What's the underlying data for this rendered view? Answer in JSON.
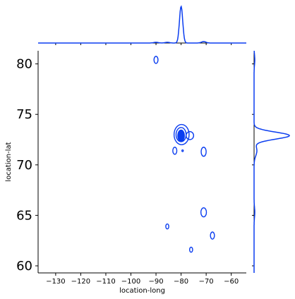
{
  "chart_data": {
    "type": "kde-jointplot",
    "xlabel": "location-long",
    "ylabel": "location-lat",
    "xlim": [
      -137,
      -54
    ],
    "ylim": [
      59.3,
      81.3
    ],
    "x_ticks": [
      -130,
      -120,
      -110,
      -100,
      -90,
      -80,
      -70,
      -60
    ],
    "y_ticks": [
      60,
      65,
      70,
      75,
      80
    ],
    "line_color": "#0a3df0",
    "contours": [
      {
        "cx": -90,
        "cy": 80.4,
        "rx": 0.8,
        "ry": 0.35,
        "level": 1,
        "filled": false
      },
      {
        "cx": -79.8,
        "cy": 73.0,
        "rx": 3.0,
        "ry": 1.0,
        "level": 1,
        "filled": false
      },
      {
        "cx": -80,
        "cy": 73.0,
        "rx": 2.0,
        "ry": 0.7,
        "level": 2,
        "filled": false
      },
      {
        "cx": -80,
        "cy": 72.9,
        "rx": 1.3,
        "ry": 0.55,
        "level": 3,
        "filled": true
      },
      {
        "cx": -76.5,
        "cy": 72.9,
        "rx": 1.5,
        "ry": 0.4,
        "level": 1,
        "filled": false
      },
      {
        "cx": -82.5,
        "cy": 71.4,
        "rx": 0.8,
        "ry": 0.35,
        "level": 1,
        "filled": false
      },
      {
        "cx": -79.4,
        "cy": 71.4,
        "rx": 0.15,
        "ry": 0.08,
        "level": 1,
        "filled": false
      },
      {
        "cx": -71.0,
        "cy": 71.3,
        "rx": 1.0,
        "ry": 0.45,
        "level": 1,
        "filled": false
      },
      {
        "cx": -71.0,
        "cy": 65.3,
        "rx": 1.1,
        "ry": 0.45,
        "level": 1,
        "filled": false
      },
      {
        "cx": -85.5,
        "cy": 63.9,
        "rx": 0.6,
        "ry": 0.25,
        "level": 1,
        "filled": false
      },
      {
        "cx": -67.5,
        "cy": 63.0,
        "rx": 0.8,
        "ry": 0.35,
        "level": 1,
        "filled": false
      },
      {
        "cx": -76.0,
        "cy": 61.6,
        "rx": 0.6,
        "ry": 0.25,
        "level": 1,
        "filled": false
      }
    ],
    "marginal_x": {
      "peaks": [
        {
          "x": -80,
          "height": 1.0,
          "sigma": 0.65
        },
        {
          "x": -71,
          "height": 0.04,
          "sigma": 0.9
        },
        {
          "x": -90,
          "height": 0.02,
          "sigma": 0.9
        },
        {
          "x": -85.5,
          "height": 0.02,
          "sigma": 0.9
        }
      ]
    },
    "marginal_y": {
      "peaks": [
        {
          "y": 72.9,
          "height": 1.0,
          "sigma": 0.35
        },
        {
          "y": 71.4,
          "height": 0.08,
          "sigma": 0.5
        },
        {
          "y": 65.3,
          "height": 0.02,
          "sigma": 0.5
        },
        {
          "y": 80.4,
          "height": 0.02,
          "sigma": 0.5
        }
      ]
    }
  }
}
